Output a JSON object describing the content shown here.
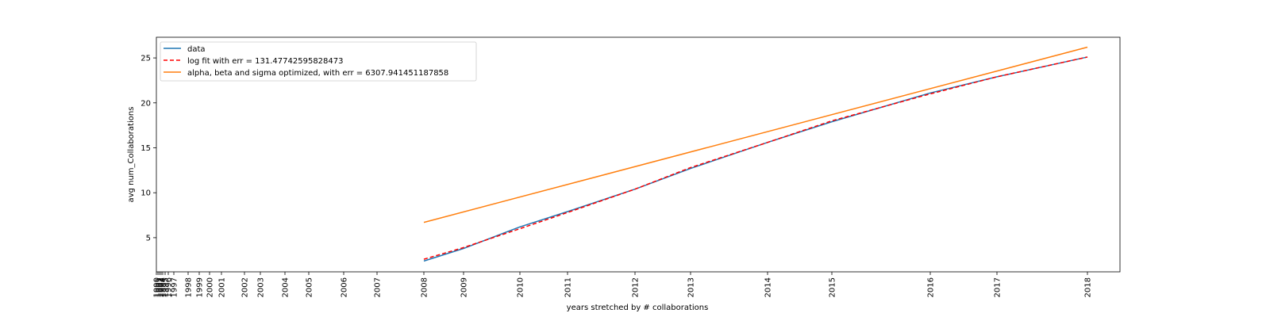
{
  "chart_data": {
    "type": "line",
    "xlabel": "years stretched by # collaborations",
    "ylabel": "avg num_Collaborations",
    "x_scale": "stretched (tick spacing proportional to cumulative # collaborations)",
    "x_ticks": [
      "1990",
      "1991",
      "1992",
      "1993",
      "1994",
      "1995",
      "1996",
      "1997",
      "1998",
      "1999",
      "2000",
      "2001",
      "2002",
      "2003",
      "2004",
      "2005",
      "2006",
      "2007",
      "2008",
      "2009",
      "2010",
      "2011",
      "2012",
      "2013",
      "2014",
      "2015",
      "2016",
      "2017",
      "2018"
    ],
    "y_ticks": [
      5,
      10,
      15,
      20,
      25
    ],
    "ylim": [
      1.2,
      27.3
    ],
    "grid": false,
    "legend_position": "top-left",
    "series": [
      {
        "name": "data",
        "color": "#1f77b4",
        "style": "solid",
        "x": [
          "2008",
          "2009",
          "2010",
          "2011",
          "2012",
          "2013",
          "2014",
          "2015",
          "2016",
          "2017",
          "2018"
        ],
        "y": [
          2.4,
          3.8,
          6.2,
          7.9,
          10.4,
          12.7,
          15.6,
          17.9,
          21.1,
          22.9,
          25.1
        ]
      },
      {
        "name": "log fit with err = 131.47742595828473",
        "color": "#ff0000",
        "style": "dashed",
        "x": [
          "2008",
          "2009",
          "2010",
          "2011",
          "2012",
          "2013",
          "2014",
          "2015",
          "2016",
          "2017",
          "2018"
        ],
        "y": [
          2.6,
          3.9,
          6.0,
          7.8,
          10.4,
          12.8,
          15.6,
          18.0,
          21.0,
          22.9,
          25.1
        ]
      },
      {
        "name": "alpha, beta and sigma optimized, with err = 6307.941451187858",
        "color": "#ff7f0e",
        "style": "solid",
        "x": [
          "2008",
          "2018"
        ],
        "y": [
          6.7,
          26.2
        ]
      }
    ]
  }
}
